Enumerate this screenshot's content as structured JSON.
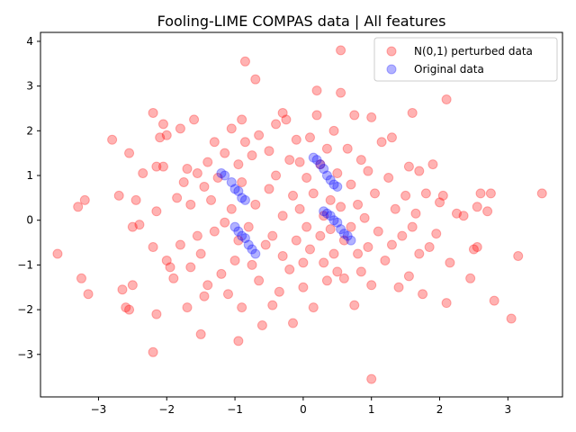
{
  "chart_data": {
    "type": "scatter",
    "title": "Fooling-LIME COMPAS data | All features",
    "xlabel": "",
    "ylabel": "",
    "xlim": [
      -3.85,
      3.8
    ],
    "ylim": [
      -3.95,
      4.2
    ],
    "xticks": [
      -3,
      -2,
      -1,
      0,
      1,
      2,
      3
    ],
    "yticks": [
      -3,
      -2,
      -1,
      0,
      1,
      2,
      3,
      4
    ],
    "xtick_labels": [
      "−3",
      "−2",
      "−1",
      "0",
      "1",
      "2",
      "3"
    ],
    "ytick_labels": [
      "−3",
      "−2",
      "−1",
      "0",
      "1",
      "2",
      "3",
      "4"
    ],
    "grid": false,
    "legend_position": "upper right",
    "series": [
      {
        "name": "N(0,1) perturbed data",
        "color": "#ff0000",
        "alpha": 0.3,
        "points": [
          [
            -3.6,
            -0.75
          ],
          [
            -3.3,
            0.3
          ],
          [
            -3.2,
            0.45
          ],
          [
            -3.25,
            -1.3
          ],
          [
            -3.15,
            -1.65
          ],
          [
            -2.8,
            1.8
          ],
          [
            -2.7,
            0.55
          ],
          [
            -2.65,
            -1.55
          ],
          [
            -2.6,
            -1.95
          ],
          [
            -2.55,
            1.5
          ],
          [
            -2.55,
            -2.0
          ],
          [
            -2.5,
            -1.45
          ],
          [
            -2.5,
            -0.15
          ],
          [
            -2.45,
            0.45
          ],
          [
            -2.4,
            -0.1
          ],
          [
            -2.35,
            1.05
          ],
          [
            -2.2,
            2.4
          ],
          [
            -2.2,
            -0.6
          ],
          [
            -2.2,
            -2.95
          ],
          [
            -2.15,
            0.2
          ],
          [
            -2.15,
            1.2
          ],
          [
            -2.15,
            -2.1
          ],
          [
            -2.1,
            1.85
          ],
          [
            -2.05,
            2.15
          ],
          [
            -2.05,
            1.2
          ],
          [
            -2.0,
            1.9
          ],
          [
            -2.0,
            -0.9
          ],
          [
            -1.95,
            -1.05
          ],
          [
            -1.9,
            -1.3
          ],
          [
            -1.85,
            0.5
          ],
          [
            -1.8,
            2.05
          ],
          [
            -1.8,
            -0.55
          ],
          [
            -1.75,
            0.85
          ],
          [
            -1.7,
            1.15
          ],
          [
            -1.7,
            -1.95
          ],
          [
            -1.65,
            0.35
          ],
          [
            -1.65,
            -1.05
          ],
          [
            -1.6,
            2.25
          ],
          [
            -1.55,
            1.05
          ],
          [
            -1.55,
            -0.35
          ],
          [
            -1.5,
            -0.75
          ],
          [
            -1.5,
            -2.55
          ],
          [
            -1.45,
            0.75
          ],
          [
            -1.45,
            -1.7
          ],
          [
            -1.4,
            1.3
          ],
          [
            -1.4,
            -1.45
          ],
          [
            -1.35,
            0.45
          ],
          [
            -1.3,
            1.75
          ],
          [
            -1.3,
            -0.25
          ],
          [
            -1.25,
            0.95
          ],
          [
            -1.2,
            -1.2
          ],
          [
            -1.15,
            1.5
          ],
          [
            -1.15,
            -0.05
          ],
          [
            -1.1,
            -1.65
          ],
          [
            -1.05,
            2.05
          ],
          [
            -1.05,
            0.25
          ],
          [
            -1.0,
            -0.9
          ],
          [
            -0.95,
            1.25
          ],
          [
            -0.95,
            -0.45
          ],
          [
            -0.95,
            -2.7
          ],
          [
            -0.9,
            2.25
          ],
          [
            -0.9,
            0.85
          ],
          [
            -0.9,
            -1.95
          ],
          [
            -0.85,
            3.55
          ],
          [
            -0.85,
            1.75
          ],
          [
            -0.8,
            -0.15
          ],
          [
            -0.75,
            -1.0
          ],
          [
            -0.75,
            1.45
          ],
          [
            -0.7,
            3.15
          ],
          [
            -0.7,
            0.35
          ],
          [
            -0.65,
            -1.35
          ],
          [
            -0.65,
            1.9
          ],
          [
            -0.6,
            -2.35
          ],
          [
            -0.55,
            -0.55
          ],
          [
            -0.5,
            0.7
          ],
          [
            -0.5,
            1.55
          ],
          [
            -0.45,
            -1.9
          ],
          [
            -0.45,
            -0.35
          ],
          [
            -0.4,
            2.15
          ],
          [
            -0.4,
            1.0
          ],
          [
            -0.35,
            -1.6
          ],
          [
            -0.3,
            2.4
          ],
          [
            -0.3,
            0.1
          ],
          [
            -0.3,
            -0.8
          ],
          [
            -0.25,
            2.25
          ],
          [
            -0.2,
            1.35
          ],
          [
            -0.2,
            -1.1
          ],
          [
            -0.15,
            0.55
          ],
          [
            -0.15,
            -2.3
          ],
          [
            -0.1,
            1.8
          ],
          [
            -0.1,
            -0.45
          ],
          [
            -0.05,
            1.3
          ],
          [
            -0.05,
            0.25
          ],
          [
            0.0,
            -0.95
          ],
          [
            0.0,
            -1.5
          ],
          [
            0.05,
            0.95
          ],
          [
            0.05,
            -0.15
          ],
          [
            0.1,
            1.85
          ],
          [
            0.1,
            -0.65
          ],
          [
            0.15,
            -1.95
          ],
          [
            0.15,
            0.6
          ],
          [
            0.2,
            2.9
          ],
          [
            0.2,
            2.35
          ],
          [
            0.25,
            -0.35
          ],
          [
            0.25,
            1.25
          ],
          [
            0.3,
            -0.95
          ],
          [
            0.3,
            0.1
          ],
          [
            0.35,
            1.6
          ],
          [
            0.35,
            -1.35
          ],
          [
            0.4,
            0.45
          ],
          [
            0.4,
            -0.2
          ],
          [
            0.45,
            2.0
          ],
          [
            0.45,
            -0.75
          ],
          [
            0.5,
            1.05
          ],
          [
            0.5,
            -1.15
          ],
          [
            0.55,
            3.8
          ],
          [
            0.55,
            2.85
          ],
          [
            0.55,
            0.3
          ],
          [
            0.6,
            -0.45
          ],
          [
            0.6,
            -1.3
          ],
          [
            0.65,
            1.6
          ],
          [
            0.7,
            0.8
          ],
          [
            0.7,
            -0.15
          ],
          [
            0.75,
            -1.9
          ],
          [
            0.75,
            2.35
          ],
          [
            0.8,
            -0.75
          ],
          [
            0.8,
            0.35
          ],
          [
            0.85,
            1.35
          ],
          [
            0.85,
            -1.15
          ],
          [
            0.9,
            0.05
          ],
          [
            0.95,
            -0.6
          ],
          [
            0.95,
            1.1
          ],
          [
            1.0,
            2.3
          ],
          [
            1.0,
            -1.45
          ],
          [
            1.0,
            -3.55
          ],
          [
            1.05,
            0.6
          ],
          [
            1.1,
            -0.25
          ],
          [
            1.15,
            1.75
          ],
          [
            1.2,
            -0.9
          ],
          [
            1.25,
            0.95
          ],
          [
            1.3,
            -0.55
          ],
          [
            1.3,
            1.85
          ],
          [
            1.35,
            0.25
          ],
          [
            1.4,
            -1.5
          ],
          [
            1.45,
            -0.35
          ],
          [
            1.5,
            0.55
          ],
          [
            1.55,
            1.2
          ],
          [
            1.55,
            -1.25
          ],
          [
            1.6,
            2.4
          ],
          [
            1.6,
            -0.15
          ],
          [
            1.65,
            0.15
          ],
          [
            1.7,
            1.1
          ],
          [
            1.7,
            -0.75
          ],
          [
            1.75,
            -1.65
          ],
          [
            1.8,
            0.6
          ],
          [
            1.85,
            -0.6
          ],
          [
            1.9,
            1.25
          ],
          [
            1.95,
            -0.3
          ],
          [
            2.0,
            0.4
          ],
          [
            2.05,
            0.55
          ],
          [
            2.1,
            -1.85
          ],
          [
            2.1,
            2.7
          ],
          [
            2.15,
            -0.95
          ],
          [
            2.25,
            0.15
          ],
          [
            2.35,
            0.1
          ],
          [
            2.45,
            -1.3
          ],
          [
            2.5,
            -0.65
          ],
          [
            2.55,
            0.3
          ],
          [
            2.55,
            -0.6
          ],
          [
            2.6,
            0.6
          ],
          [
            2.7,
            0.2
          ],
          [
            2.75,
            0.6
          ],
          [
            2.8,
            -1.8
          ],
          [
            3.05,
            -2.2
          ],
          [
            3.15,
            -0.8
          ],
          [
            3.5,
            0.6
          ]
        ]
      },
      {
        "name": "Original data",
        "color": "#0000ff",
        "alpha": 0.3,
        "points": [
          [
            -1.2,
            1.05
          ],
          [
            -1.15,
            1.0
          ],
          [
            -1.05,
            0.85
          ],
          [
            -1.0,
            0.7
          ],
          [
            -0.95,
            0.65
          ],
          [
            -0.9,
            0.5
          ],
          [
            -0.85,
            0.45
          ],
          [
            -1.0,
            -0.15
          ],
          [
            -0.95,
            -0.25
          ],
          [
            -0.9,
            -0.35
          ],
          [
            -0.85,
            -0.4
          ],
          [
            -0.8,
            -0.55
          ],
          [
            -0.75,
            -0.65
          ],
          [
            -0.7,
            -0.75
          ],
          [
            0.15,
            1.4
          ],
          [
            0.2,
            1.35
          ],
          [
            0.25,
            1.25
          ],
          [
            0.3,
            1.15
          ],
          [
            0.35,
            1.0
          ],
          [
            0.4,
            0.9
          ],
          [
            0.45,
            0.8
          ],
          [
            0.5,
            0.75
          ],
          [
            0.3,
            0.2
          ],
          [
            0.35,
            0.15
          ],
          [
            0.4,
            0.1
          ],
          [
            0.45,
            0.0
          ],
          [
            0.5,
            -0.05
          ],
          [
            0.55,
            -0.2
          ],
          [
            0.6,
            -0.3
          ],
          [
            0.65,
            -0.35
          ],
          [
            0.7,
            -0.45
          ]
        ]
      }
    ]
  }
}
